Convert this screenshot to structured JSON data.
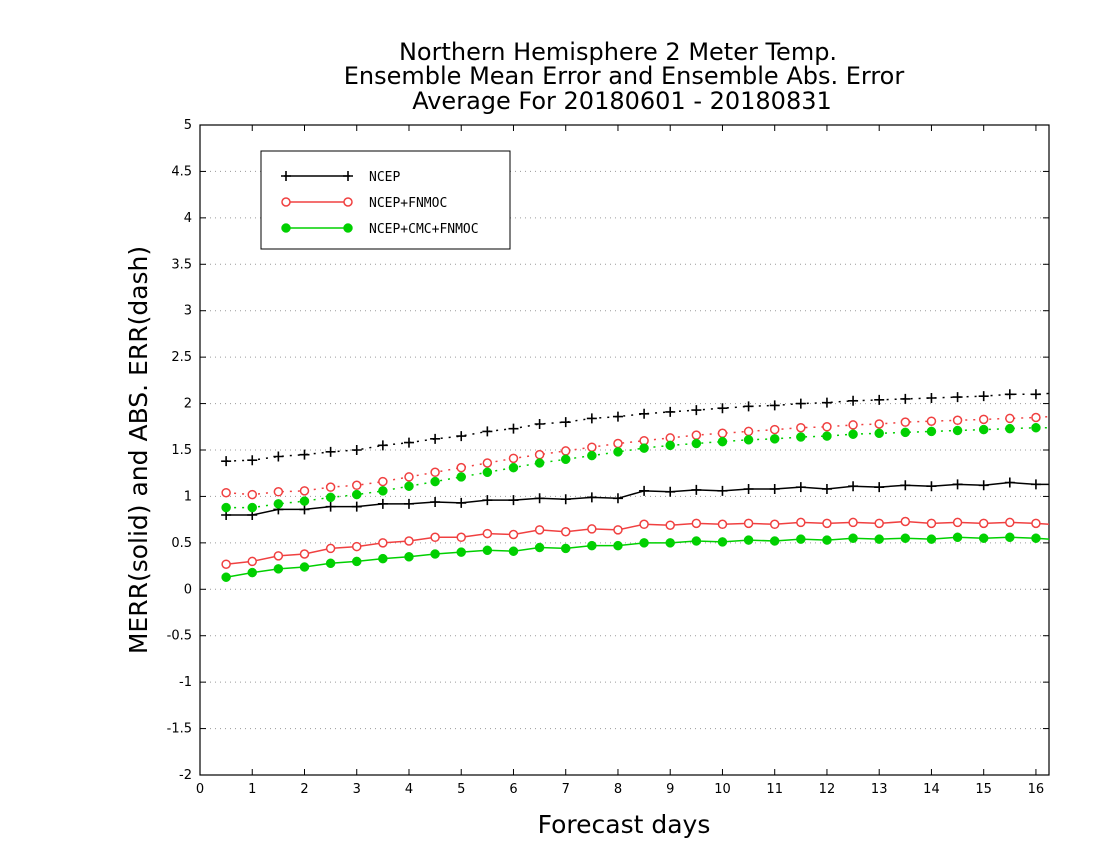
{
  "chart_data": {
    "type": "line",
    "title": [
      "Northern Hemisphere 2 Meter Temp.",
      "Ensemble Mean Error and Ensemble Abs. Error",
      "Average For 20180601 - 20180831"
    ],
    "xlabel": "Forecast days",
    "ylabel": "MERR(solid) and ABS. ERR(dash)",
    "xlim": [
      0,
      16.25
    ],
    "ylim": [
      -2,
      5
    ],
    "xticks": [
      0,
      1,
      2,
      3,
      4,
      5,
      6,
      7,
      8,
      9,
      10,
      11,
      12,
      13,
      14,
      15,
      16
    ],
    "yticks": [
      -2,
      -1.5,
      -1,
      -0.5,
      0,
      0.5,
      1,
      1.5,
      2,
      2.5,
      3,
      3.5,
      4,
      4.5,
      5
    ],
    "ytick_labels": [
      "-2",
      "-1.5",
      "-1",
      "-0.5",
      "0",
      "0.5",
      "1",
      "1.5",
      "2",
      "2.5",
      "3",
      "3.5",
      "4",
      "4.5",
      "5"
    ],
    "grid": "horizontal dotted",
    "legend_position": "top-left",
    "x": [
      0.5,
      1,
      1.5,
      2,
      2.5,
      3,
      3.5,
      4,
      4.5,
      5,
      5.5,
      6,
      6.5,
      7,
      7.5,
      8,
      8.5,
      9,
      9.5,
      10,
      10.5,
      11,
      11.5,
      12,
      12.5,
      13,
      13.5,
      14,
      14.5,
      15,
      15.5,
      16,
      16.25
    ],
    "series": [
      {
        "name": "NCEP",
        "color": "#000000",
        "marker": "plus",
        "merr": [
          0.8,
          0.8,
          0.86,
          0.86,
          0.89,
          0.89,
          0.92,
          0.92,
          0.94,
          0.93,
          0.96,
          0.96,
          0.98,
          0.97,
          0.99,
          0.98,
          1.06,
          1.05,
          1.07,
          1.06,
          1.08,
          1.08,
          1.1,
          1.08,
          1.11,
          1.1,
          1.12,
          1.11,
          1.13,
          1.12,
          1.15,
          1.13,
          1.13
        ],
        "abs_err": [
          1.38,
          1.39,
          1.43,
          1.45,
          1.48,
          1.5,
          1.55,
          1.58,
          1.62,
          1.65,
          1.7,
          1.73,
          1.78,
          1.8,
          1.84,
          1.86,
          1.89,
          1.91,
          1.93,
          1.95,
          1.97,
          1.98,
          2.0,
          2.01,
          2.03,
          2.04,
          2.05,
          2.06,
          2.07,
          2.08,
          2.1,
          2.1,
          2.11
        ]
      },
      {
        "name": "NCEP+FNMOC",
        "color": "#f04040",
        "marker": "open-circle",
        "merr": [
          0.27,
          0.3,
          0.36,
          0.38,
          0.44,
          0.46,
          0.5,
          0.52,
          0.56,
          0.56,
          0.6,
          0.59,
          0.64,
          0.62,
          0.65,
          0.64,
          0.7,
          0.69,
          0.71,
          0.7,
          0.71,
          0.7,
          0.72,
          0.71,
          0.72,
          0.71,
          0.73,
          0.71,
          0.72,
          0.71,
          0.72,
          0.71,
          0.7
        ],
        "abs_err": [
          1.04,
          1.02,
          1.05,
          1.06,
          1.1,
          1.12,
          1.16,
          1.21,
          1.26,
          1.31,
          1.36,
          1.41,
          1.45,
          1.49,
          1.53,
          1.57,
          1.6,
          1.63,
          1.66,
          1.68,
          1.7,
          1.72,
          1.74,
          1.75,
          1.77,
          1.78,
          1.8,
          1.81,
          1.82,
          1.83,
          1.84,
          1.85,
          1.86
        ]
      },
      {
        "name": "NCEP+CMC+FNMOC",
        "color": "#00d000",
        "marker": "filled-circle",
        "merr": [
          0.13,
          0.18,
          0.22,
          0.24,
          0.28,
          0.3,
          0.33,
          0.35,
          0.38,
          0.4,
          0.42,
          0.41,
          0.45,
          0.44,
          0.47,
          0.47,
          0.5,
          0.5,
          0.52,
          0.51,
          0.53,
          0.52,
          0.54,
          0.53,
          0.55,
          0.54,
          0.55,
          0.54,
          0.56,
          0.55,
          0.56,
          0.55,
          0.54
        ],
        "abs_err": [
          0.88,
          0.88,
          0.92,
          0.95,
          0.99,
          1.02,
          1.06,
          1.11,
          1.16,
          1.21,
          1.26,
          1.31,
          1.36,
          1.4,
          1.44,
          1.48,
          1.52,
          1.55,
          1.57,
          1.59,
          1.61,
          1.62,
          1.64,
          1.65,
          1.67,
          1.68,
          1.69,
          1.7,
          1.71,
          1.72,
          1.73,
          1.74,
          1.74
        ]
      }
    ]
  }
}
